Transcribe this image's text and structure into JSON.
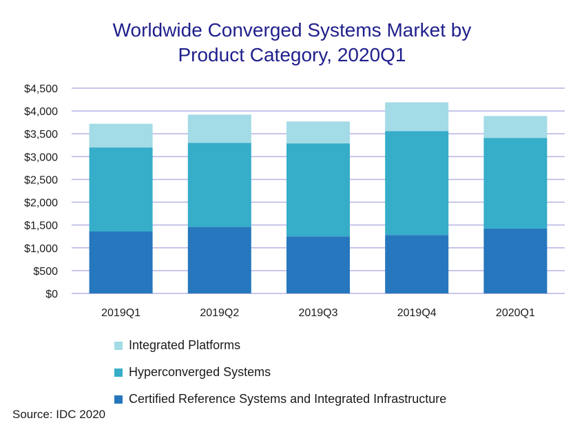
{
  "chart_data": {
    "type": "bar",
    "stacked": true,
    "title_lines": [
      "Worldwide Converged Systems Market by",
      "Product Category, 2020Q1"
    ],
    "categories": [
      "2019Q1",
      "2019Q2",
      "2019Q3",
      "2019Q4",
      "2020Q1"
    ],
    "series": [
      {
        "name": "Certified Reference Systems and Integrated Infrastructure",
        "color": "#2677bd",
        "values": [
          1360,
          1460,
          1250,
          1280,
          1420
        ]
      },
      {
        "name": "Hyperconverged Systems",
        "color": "#36adc9",
        "values": [
          1840,
          1840,
          2040,
          2280,
          1990
        ]
      },
      {
        "name": "Integrated Platforms",
        "color": "#a3dbe6",
        "values": [
          520,
          620,
          480,
          630,
          480
        ]
      }
    ],
    "ylim": [
      0,
      4500
    ],
    "yticks": [
      0,
      500,
      1000,
      1500,
      2000,
      2500,
      3000,
      3500,
      4000,
      4500
    ],
    "ytick_labels": [
      "$0",
      "$500",
      "$1,000",
      "$1,500",
      "$2,000",
      "$2,500",
      "$3,000",
      "$3,500",
      "$4,000",
      "$4,500"
    ],
    "grid": true,
    "legend_position": "bottom",
    "legend_order": [
      "Integrated Platforms",
      "Hyperconverged Systems",
      "Certified Reference Systems and Integrated Infrastructure"
    ],
    "gridline_color": "#b3b3e6"
  },
  "source": "Source: IDC 2020"
}
